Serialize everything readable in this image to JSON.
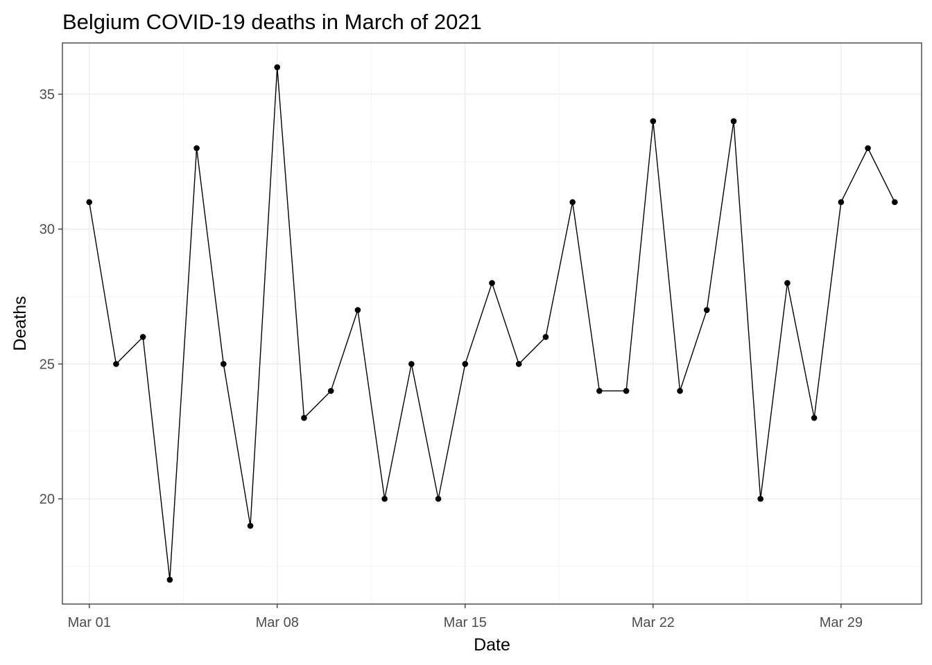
{
  "chart_data": {
    "type": "line",
    "title": "Belgium COVID-19 deaths in March of 2021",
    "xlabel": "Date",
    "ylabel": "Deaths",
    "x_tick_labels": [
      "Mar 01",
      "Mar 08",
      "Mar 15",
      "Mar 22",
      "Mar 29"
    ],
    "y_tick_values": [
      20,
      25,
      30,
      35
    ],
    "x_range": [
      "2021-02-28",
      "2021-04-01"
    ],
    "ylim": [
      16.1,
      36.9
    ],
    "grid": true,
    "legend": "none",
    "series": [
      {
        "color": "#000000",
        "x": [
          "2021-03-01",
          "2021-03-02",
          "2021-03-03",
          "2021-03-04",
          "2021-03-05",
          "2021-03-06",
          "2021-03-07",
          "2021-03-08",
          "2021-03-09",
          "2021-03-10",
          "2021-03-11",
          "2021-03-12",
          "2021-03-13",
          "2021-03-14",
          "2021-03-15",
          "2021-03-16",
          "2021-03-17",
          "2021-03-18",
          "2021-03-19",
          "2021-03-20",
          "2021-03-21",
          "2021-03-22",
          "2021-03-23",
          "2021-03-24",
          "2021-03-25",
          "2021-03-26",
          "2021-03-27",
          "2021-03-28",
          "2021-03-29",
          "2021-03-30",
          "2021-03-31"
        ],
        "values": [
          31,
          25,
          26,
          17,
          33,
          25,
          19,
          36,
          23,
          24,
          27,
          20,
          25,
          20,
          25,
          28,
          25,
          26,
          31,
          24,
          24,
          34,
          24,
          27,
          34,
          20,
          28,
          23,
          31,
          33,
          31
        ]
      }
    ]
  }
}
